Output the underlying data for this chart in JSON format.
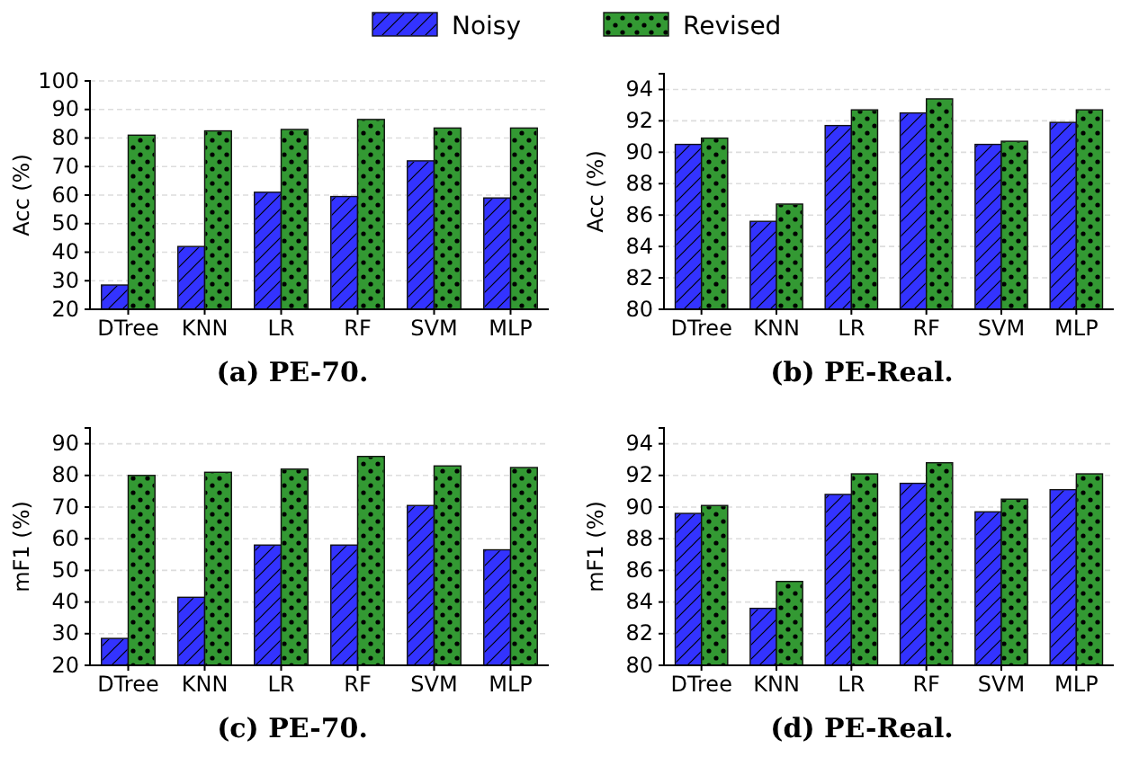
{
  "chart_data": [
    {
      "type": "bar",
      "title": "(a) PE-70.",
      "ylabel": "Acc (%)",
      "categories": [
        "DTree",
        "KNN",
        "LR",
        "RF",
        "SVM",
        "MLP"
      ],
      "ylim": [
        20,
        100
      ],
      "yticks": [
        20,
        30,
        40,
        50,
        60,
        70,
        80,
        90,
        100
      ],
      "grid": "y",
      "legend": "top",
      "series": [
        {
          "name": "Noisy",
          "color": "#3333ff",
          "values": [
            28.5,
            42,
            61,
            59.5,
            72,
            59
          ]
        },
        {
          "name": "Revised",
          "color": "#339933",
          "values": [
            81,
            82.5,
            83,
            86.5,
            83.5,
            83.5
          ]
        }
      ]
    },
    {
      "type": "bar",
      "title": "(b) PE-Real.",
      "ylabel": "Acc (%)",
      "categories": [
        "DTree",
        "KNN",
        "LR",
        "RF",
        "SVM",
        "MLP"
      ],
      "ylim": [
        80,
        95
      ],
      "yticks": [
        80,
        82,
        84,
        86,
        88,
        90,
        92,
        94
      ],
      "grid": "y",
      "series": [
        {
          "color": "#3333ff",
          "values": [
            90.5,
            85.6,
            91.7,
            92.5,
            90.5,
            91.9
          ]
        },
        {
          "color": "#339933",
          "values": [
            90.9,
            86.7,
            92.7,
            93.4,
            90.7,
            92.7
          ]
        }
      ]
    },
    {
      "type": "bar",
      "title": "(c) PE-70.",
      "ylabel": "mF1 (%)",
      "categories": [
        "DTree",
        "KNN",
        "LR",
        "RF",
        "SVM",
        "MLP"
      ],
      "ylim": [
        20,
        95
      ],
      "yticks": [
        20,
        30,
        40,
        50,
        60,
        70,
        80,
        90
      ],
      "grid": "y",
      "series": [
        {
          "color": "#3333ff",
          "values": [
            28.5,
            41.5,
            58,
            58,
            70.5,
            56.5
          ]
        },
        {
          "color": "#339933",
          "values": [
            80,
            81,
            82,
            86,
            83,
            82.5
          ]
        }
      ]
    },
    {
      "type": "bar",
      "title": "(d) PE-Real.",
      "ylabel": "mF1 (%)",
      "categories": [
        "DTree",
        "KNN",
        "LR",
        "RF",
        "SVM",
        "MLP"
      ],
      "ylim": [
        80,
        95
      ],
      "yticks": [
        80,
        82,
        84,
        86,
        88,
        90,
        92,
        94
      ],
      "grid": "y",
      "series": [
        {
          "color": "#3333ff",
          "values": [
            89.6,
            83.6,
            90.8,
            91.5,
            89.7,
            91.1
          ]
        },
        {
          "color": "#339933",
          "values": [
            90.1,
            85.3,
            92.1,
            92.8,
            90.5,
            92.1
          ]
        }
      ]
    }
  ]
}
